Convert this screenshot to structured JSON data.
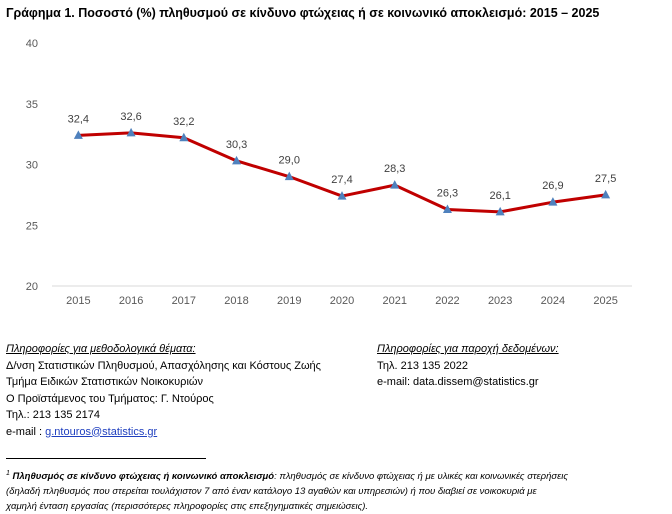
{
  "chart_data": {
    "type": "line",
    "title": "Γράφημα 1. Ποσοστό (%) πληθυσμού σε κίνδυνο φτώχειας ή σε κοινωνικό αποκλεισμό: 2015 – 2025",
    "categories": [
      "2015",
      "2016",
      "2017",
      "2018",
      "2019",
      "2020",
      "2021",
      "2022",
      "2023",
      "2024",
      "2025"
    ],
    "values": [
      32.4,
      32.6,
      32.2,
      30.3,
      29.0,
      27.4,
      28.3,
      26.3,
      26.1,
      26.9,
      27.5
    ],
    "data_labels": [
      "32,4",
      "32,6",
      "32,2",
      "30,3",
      "29,0",
      "27,4",
      "28,3",
      "26,3",
      "26,1",
      "26,9",
      "27,5"
    ],
    "ylim": [
      20,
      40
    ],
    "yticks": [
      20,
      25,
      30,
      35,
      40
    ],
    "grid": false,
    "xlabel": "",
    "ylabel": "",
    "colors": {
      "line": "#c00000",
      "marker": "#4f81bd"
    }
  },
  "info_left": {
    "heading": "Πληροφορίες για μεθοδολογικά θέματα:",
    "line1": "Δ/νση Στατιστικών Πληθυσμού, Απασχόλησης και Κόστους Ζωής",
    "line2": "Τμήμα Ειδικών Στατιστικών Νοικοκυριών",
    "line3": "Ο Προϊστάμενος του Τμήματος: Γ. Ντούρος",
    "phone": "Τηλ.: 213 135 2174",
    "email_prefix": "e-mail : ",
    "email": "g.ntouros@statistics.gr"
  },
  "info_right": {
    "heading": "Πληροφορίες για παροχή δεδομένων:",
    "phone": "Τηλ. 213 135 2022",
    "email": "e-mail: data.dissem@statistics.gr"
  },
  "footnote": {
    "mark": "1",
    "term": "Πληθυσμός σε κίνδυνο φτώχειας ή κοινωνικό αποκλεισμό",
    "text1": ": πληθυσμός σε κίνδυνο φτώχειας ή με υλικές και κοινωνικές στερήσεις",
    "text2": "(δηλαδή πληθυσμός που στερείται τουλάχιστον 7 από έναν κατάλογο 13 αγαθών και υπηρεσιών) ή που διαβιεί σε νοικοκυριά με",
    "text3": "χαμηλή ένταση εργασίας (περισσότερες πληροφορίες στις επεξηγηματικές σημειώσεις)."
  }
}
